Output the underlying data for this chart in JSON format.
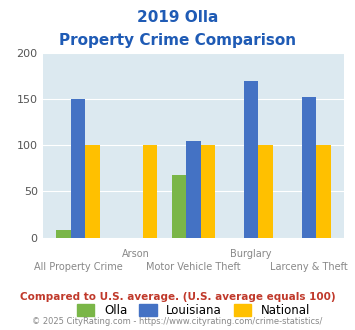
{
  "title_line1": "2019 Olla",
  "title_line2": "Property Crime Comparison",
  "categories": [
    "All Property Crime",
    "Arson",
    "Motor Vehicle Theft",
    "Burglary",
    "Larceny & Theft"
  ],
  "olla": [
    8,
    0,
    68,
    0,
    0
  ],
  "louisiana": [
    150,
    0,
    105,
    170,
    152
  ],
  "national": [
    100,
    100,
    100,
    100,
    100
  ],
  "bar_color_olla": "#7ab648",
  "bar_color_louisiana": "#4472c4",
  "bar_color_national": "#ffc000",
  "bg_color": "#dce9f0",
  "title_color": "#1f5bb5",
  "xlabel_color_top": "#888888",
  "xlabel_color_bot": "#888888",
  "ylim": [
    0,
    200
  ],
  "yticks": [
    0,
    50,
    100,
    150,
    200
  ],
  "legend_labels": [
    "Olla",
    "Louisiana",
    "National"
  ],
  "footnote1": "Compared to U.S. average. (U.S. average equals 100)",
  "footnote2": "© 2025 CityRating.com - https://www.cityrating.com/crime-statistics/",
  "footnote1_color": "#c0392b",
  "footnote2_color": "#888888",
  "top_labels": {
    "1": "Arson",
    "3": "Burglary"
  },
  "bot_labels": {
    "0": "All Property Crime",
    "2": "Motor Vehicle Theft",
    "4": "Larceny & Theft"
  }
}
